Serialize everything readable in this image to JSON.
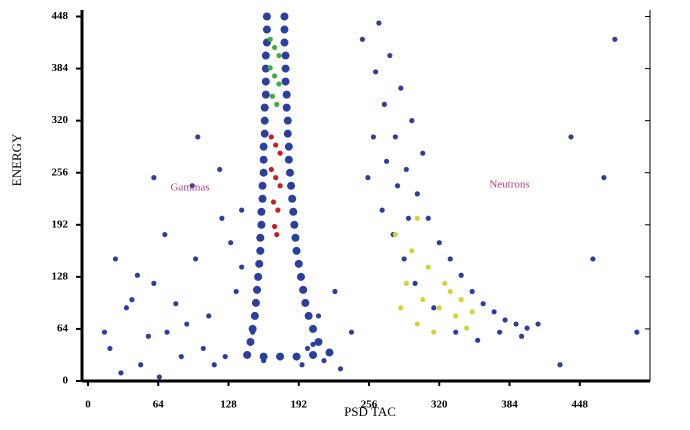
{
  "chart_data": {
    "type": "scatter",
    "x_label": "PSD TAC",
    "y_label": "ENERGY",
    "xlim": [
      0,
      512
    ],
    "ylim": [
      0,
      456
    ],
    "xticks": [
      0,
      64,
      128,
      192,
      256,
      320,
      384,
      448
    ],
    "yticks": [
      0,
      64,
      128,
      192,
      256,
      320,
      384,
      448
    ],
    "annotations": [
      {
        "text": "Gammas",
        "x": 93,
        "y": 237,
        "color": "#b0408a"
      },
      {
        "text": "Neutrons",
        "x": 384,
        "y": 241,
        "color": "#b0408a"
      }
    ],
    "series": [
      {
        "color": "#2b3fa0",
        "x": [
          20,
          35,
          48,
          60,
          72,
          85,
          98,
          110,
          122,
          135,
          30,
          55,
          80,
          105,
          130,
          150,
          45,
          70,
          95,
          120,
          140,
          160,
          25,
          90,
          115,
          140,
          200,
          215,
          230,
          240,
          210,
          225,
          195,
          205,
          60,
          100,
          125,
          15,
          40,
          65
        ],
        "y": [
          40,
          90,
          20,
          120,
          60,
          30,
          150,
          80,
          200,
          110,
          10,
          55,
          95,
          40,
          170,
          60,
          130,
          180,
          240,
          260,
          210,
          25,
          150,
          70,
          20,
          140,
          40,
          25,
          15,
          60,
          80,
          110,
          20,
          45,
          250,
          300,
          30,
          60,
          100,
          5
        ]
      },
      {
        "color": "#2b3fa0",
        "x": [
          250,
          262,
          270,
          280,
          290,
          300,
          310,
          320,
          330,
          340,
          350,
          360,
          370,
          380,
          390,
          400,
          265,
          275,
          285,
          295,
          305,
          255,
          268,
          278,
          288,
          298,
          315,
          335,
          355,
          375,
          395,
          410,
          260,
          272,
          282,
          292,
          440,
          460,
          480,
          500,
          430,
          470
        ],
        "y": [
          420,
          380,
          340,
          300,
          260,
          230,
          200,
          170,
          150,
          130,
          110,
          95,
          85,
          75,
          70,
          65,
          440,
          400,
          360,
          320,
          280,
          250,
          210,
          180,
          150,
          120,
          90,
          60,
          50,
          60,
          55,
          70,
          300,
          270,
          240,
          200,
          300,
          150,
          420,
          60,
          20,
          250
        ]
      },
      {
        "color": "#2b3fa0",
        "x": [
          163,
          163,
          163,
          162,
          162,
          162,
          162,
          161,
          161,
          161,
          160,
          160,
          160,
          159,
          159,
          158,
          158,
          157,
          157,
          156,
          155,
          154,
          153,
          152,
          150,
          148,
          179,
          179,
          179,
          180,
          180,
          180,
          181,
          181,
          182,
          182,
          183,
          183,
          184,
          185,
          186,
          187,
          188,
          189,
          190,
          192,
          194,
          196,
          198,
          201,
          205,
          210,
          145,
          160,
          175,
          190,
          205,
          220
        ],
        "y": [
          448,
          432,
          416,
          400,
          384,
          368,
          352,
          336,
          320,
          304,
          288,
          272,
          256,
          240,
          224,
          208,
          192,
          176,
          160,
          144,
          128,
          112,
          96,
          80,
          64,
          48,
          448,
          432,
          416,
          400,
          384,
          368,
          352,
          336,
          320,
          304,
          288,
          272,
          256,
          240,
          224,
          208,
          192,
          176,
          160,
          144,
          128,
          112,
          96,
          80,
          64,
          48,
          32,
          30,
          30,
          30,
          32,
          35
        ]
      },
      {
        "color": "#3fae3a",
        "x": [
          166,
          170,
          174,
          166,
          170,
          174,
          168,
          172
        ],
        "y": [
          420,
          410,
          400,
          385,
          375,
          365,
          350,
          340
        ]
      },
      {
        "color": "#c81e1e",
        "x": [
          167,
          171,
          175,
          167,
          171,
          175,
          169,
          173,
          170,
          172
        ],
        "y": [
          300,
          290,
          280,
          260,
          250,
          240,
          220,
          210,
          190,
          180
        ]
      },
      {
        "color": "#d8d23a",
        "x": [
          280,
          295,
          310,
          325,
          340,
          290,
          305,
          320,
          335,
          300,
          315,
          285,
          330,
          350,
          345,
          300
        ],
        "y": [
          180,
          160,
          140,
          120,
          100,
          120,
          100,
          90,
          80,
          70,
          60,
          90,
          110,
          85,
          65,
          200
        ]
      }
    ]
  }
}
